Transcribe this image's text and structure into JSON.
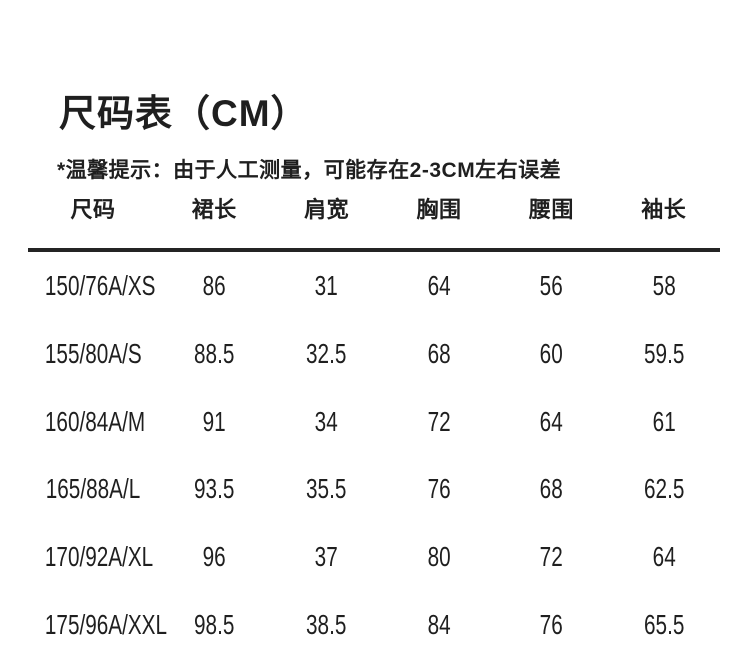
{
  "colors": {
    "background": "#ffffff",
    "text": "#1f1f1f",
    "rule": "#242424"
  },
  "chart_data": {
    "type": "table",
    "title": "尺码表（CM）",
    "note": "*温馨提示：由于人工测量，可能存在2-3CM左右误差",
    "columns": [
      "尺码",
      "裙长",
      "肩宽",
      "胸围",
      "腰围",
      "袖长"
    ],
    "rows": [
      [
        "150/76A/XS",
        86,
        31,
        64,
        56,
        58
      ],
      [
        "155/80A/S",
        88.5,
        32.5,
        68,
        60,
        59.5
      ],
      [
        "160/84A/M",
        91,
        34,
        72,
        64,
        61
      ],
      [
        "165/88A/L",
        93.5,
        35.5,
        76,
        68,
        62.5
      ],
      [
        "170/92A/XL",
        96,
        37,
        80,
        72,
        64
      ],
      [
        "175/96A/XXL",
        98.5,
        38.5,
        84,
        76,
        65.5
      ]
    ]
  }
}
